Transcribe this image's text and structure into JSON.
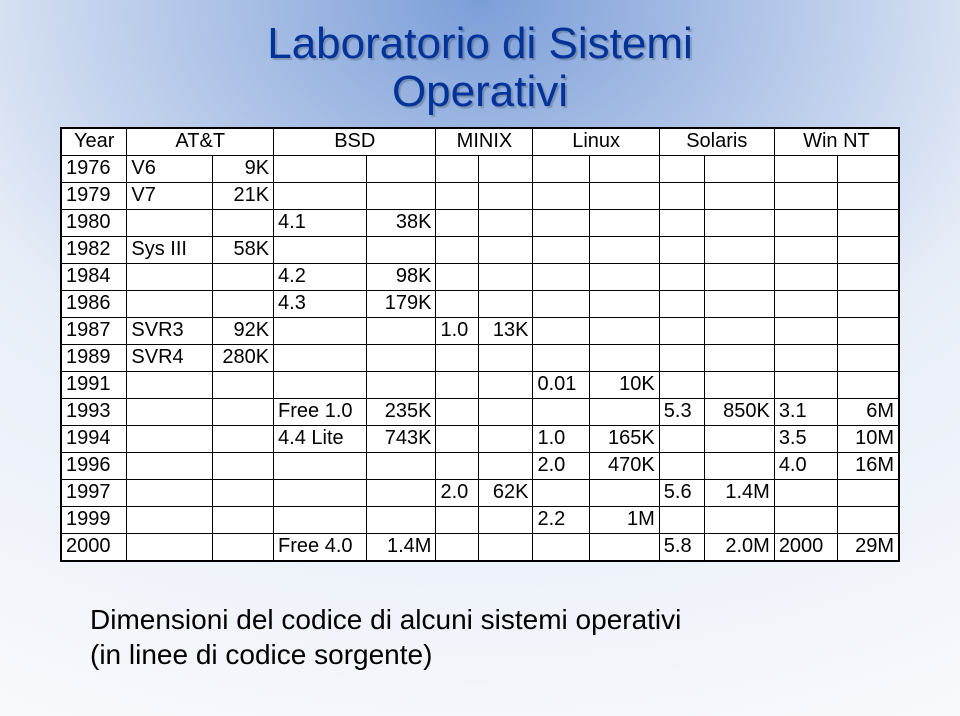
{
  "background": {
    "top_color": "#7c9ed8",
    "bottom_color": "#f2f5fb",
    "gradient_stop": 0.55
  },
  "title_line1": "Laboratorio di Sistemi",
  "title_line2": "Operativi",
  "title_color": "#003399",
  "caption_line1": "Dimensioni del codice di alcuni sistemi operativi",
  "caption_line2": "(in linee di codice sorgente)",
  "table": {
    "type": "table",
    "border_color": "#000000",
    "background_color": "#ffffff",
    "font_size_pt": 15,
    "header": {
      "year": "Year",
      "att": "AT&T",
      "bsd": "BSD",
      "minix": "MINIX",
      "linux": "Linux",
      "solaris": "Solaris",
      "winnt": "Win NT"
    },
    "rows": [
      {
        "year": "1976",
        "att_v": "V6",
        "att_s": "9K",
        "bsd_v": "",
        "bsd_s": "",
        "min_v": "",
        "min_s": "",
        "lin_v": "",
        "lin_s": "",
        "sol_v": "",
        "sol_s": "",
        "win_v": "",
        "win_s": ""
      },
      {
        "year": "1979",
        "att_v": "V7",
        "att_s": "21K",
        "bsd_v": "",
        "bsd_s": "",
        "min_v": "",
        "min_s": "",
        "lin_v": "",
        "lin_s": "",
        "sol_v": "",
        "sol_s": "",
        "win_v": "",
        "win_s": ""
      },
      {
        "year": "1980",
        "att_v": "",
        "att_s": "",
        "bsd_v": "4.1",
        "bsd_s": "38K",
        "min_v": "",
        "min_s": "",
        "lin_v": "",
        "lin_s": "",
        "sol_v": "",
        "sol_s": "",
        "win_v": "",
        "win_s": ""
      },
      {
        "year": "1982",
        "att_v": "Sys III",
        "att_s": "58K",
        "bsd_v": "",
        "bsd_s": "",
        "min_v": "",
        "min_s": "",
        "lin_v": "",
        "lin_s": "",
        "sol_v": "",
        "sol_s": "",
        "win_v": "",
        "win_s": ""
      },
      {
        "year": "1984",
        "att_v": "",
        "att_s": "",
        "bsd_v": "4.2",
        "bsd_s": "98K",
        "min_v": "",
        "min_s": "",
        "lin_v": "",
        "lin_s": "",
        "sol_v": "",
        "sol_s": "",
        "win_v": "",
        "win_s": ""
      },
      {
        "year": "1986",
        "att_v": "",
        "att_s": "",
        "bsd_v": "4.3",
        "bsd_s": "179K",
        "min_v": "",
        "min_s": "",
        "lin_v": "",
        "lin_s": "",
        "sol_v": "",
        "sol_s": "",
        "win_v": "",
        "win_s": ""
      },
      {
        "year": "1987",
        "att_v": "SVR3",
        "att_s": "92K",
        "bsd_v": "",
        "bsd_s": "",
        "min_v": "1.0",
        "min_s": "13K",
        "lin_v": "",
        "lin_s": "",
        "sol_v": "",
        "sol_s": "",
        "win_v": "",
        "win_s": ""
      },
      {
        "year": "1989",
        "att_v": "SVR4",
        "att_s": "280K",
        "bsd_v": "",
        "bsd_s": "",
        "min_v": "",
        "min_s": "",
        "lin_v": "",
        "lin_s": "",
        "sol_v": "",
        "sol_s": "",
        "win_v": "",
        "win_s": ""
      },
      {
        "year": "1991",
        "att_v": "",
        "att_s": "",
        "bsd_v": "",
        "bsd_s": "",
        "min_v": "",
        "min_s": "",
        "lin_v": "0.01",
        "lin_s": "10K",
        "sol_v": "",
        "sol_s": "",
        "win_v": "",
        "win_s": ""
      },
      {
        "year": "1993",
        "att_v": "",
        "att_s": "",
        "bsd_v": "Free 1.0",
        "bsd_s": "235K",
        "min_v": "",
        "min_s": "",
        "lin_v": "",
        "lin_s": "",
        "sol_v": "5.3",
        "sol_s": "850K",
        "win_v": "3.1",
        "win_s": "6M"
      },
      {
        "year": "1994",
        "att_v": "",
        "att_s": "",
        "bsd_v": "4.4 Lite",
        "bsd_s": "743K",
        "min_v": "",
        "min_s": "",
        "lin_v": "1.0",
        "lin_s": "165K",
        "sol_v": "",
        "sol_s": "",
        "win_v": "3.5",
        "win_s": "10M"
      },
      {
        "year": "1996",
        "att_v": "",
        "att_s": "",
        "bsd_v": "",
        "bsd_s": "",
        "min_v": "",
        "min_s": "",
        "lin_v": "2.0",
        "lin_s": "470K",
        "sol_v": "",
        "sol_s": "",
        "win_v": "4.0",
        "win_s": "16M"
      },
      {
        "year": "1997",
        "att_v": "",
        "att_s": "",
        "bsd_v": "",
        "bsd_s": "",
        "min_v": "2.0",
        "min_s": "62K",
        "lin_v": "",
        "lin_s": "",
        "sol_v": "5.6",
        "sol_s": "1.4M",
        "win_v": "",
        "win_s": ""
      },
      {
        "year": "1999",
        "att_v": "",
        "att_s": "",
        "bsd_v": "",
        "bsd_s": "",
        "min_v": "",
        "min_s": "",
        "lin_v": "2.2",
        "lin_s": "1M",
        "sol_v": "",
        "sol_s": "",
        "win_v": "",
        "win_s": ""
      },
      {
        "year": "2000",
        "att_v": "",
        "att_s": "",
        "bsd_v": "Free 4.0",
        "bsd_s": "1.4M",
        "min_v": "",
        "min_s": "",
        "lin_v": "",
        "lin_s": "",
        "sol_v": "5.8",
        "sol_s": "2.0M",
        "win_v": "2000",
        "win_s": "29M"
      }
    ]
  }
}
